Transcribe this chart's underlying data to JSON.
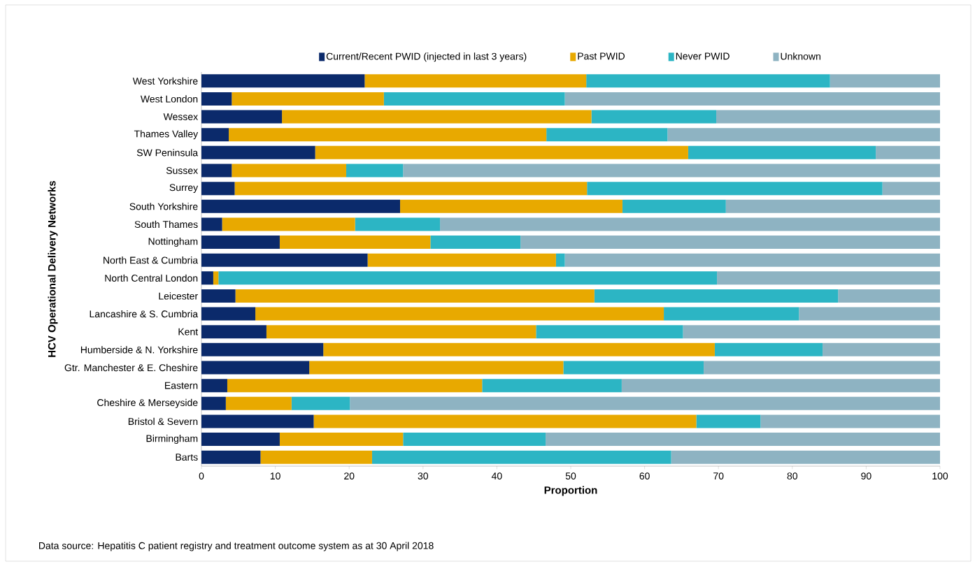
{
  "chart_data": {
    "type": "bar",
    "orientation": "horizontal",
    "stacked": true,
    "legend": "top",
    "grid": false,
    "xlabel": "Proportion",
    "ylabel": "HCV Operational Delivery Networks",
    "xlim": [
      0,
      100
    ],
    "xticks": [
      0,
      10,
      20,
      30,
      40,
      50,
      60,
      70,
      80,
      90,
      100
    ],
    "categories": [
      "West Yorkshire",
      "West London",
      "Wessex",
      "Thames Valley",
      "SW Peninsula",
      "Sussex",
      "Surrey",
      "South Yorkshire",
      "South Thames",
      "Nottingham",
      "North East & Cumbria",
      "North Central London",
      "Leicester",
      "Lancashire & S. Cumbria",
      "Kent",
      "Humberside & N. Yorkshire",
      "Gtr. Manchester & E. Cheshire",
      "Eastern",
      "Cheshire & Merseyside",
      "Bristol & Severn",
      "Birmingham",
      "Barts"
    ],
    "series": [
      {
        "name": "Current/Recent PWID (injected in last 3 years)",
        "color": "#0b2a6b",
        "values": [
          22.1,
          4.1,
          10.9,
          3.7,
          15.4,
          4.1,
          4.5,
          26.9,
          2.8,
          10.6,
          22.5,
          1.6,
          4.6,
          7.3,
          8.8,
          16.5,
          14.6,
          3.5,
          3.3,
          15.2,
          10.6,
          8.0
        ]
      },
      {
        "name": "Past PWID",
        "color": "#e8a900",
        "values": [
          30.0,
          20.6,
          41.9,
          43.0,
          50.5,
          15.5,
          47.7,
          30.1,
          18.0,
          20.4,
          25.5,
          0.7,
          48.6,
          55.3,
          36.5,
          53.0,
          34.4,
          34.5,
          8.9,
          51.8,
          16.7,
          15.1
        ]
      },
      {
        "name": "Never PWID",
        "color": "#2cb5c4",
        "values": [
          33.0,
          24.5,
          16.9,
          16.4,
          25.4,
          7.7,
          40.0,
          14.0,
          11.5,
          12.2,
          1.2,
          67.5,
          33.0,
          18.3,
          19.9,
          14.6,
          19.0,
          18.9,
          7.9,
          8.7,
          19.3,
          40.5
        ]
      },
      {
        "name": "Unknown",
        "color": "#8eb3c2",
        "values": [
          14.9,
          50.8,
          30.3,
          36.9,
          8.7,
          72.7,
          7.8,
          29.0,
          67.7,
          56.8,
          50.8,
          30.2,
          13.8,
          19.1,
          34.8,
          15.9,
          32.0,
          43.1,
          79.9,
          24.3,
          53.4,
          36.4
        ]
      }
    ],
    "annotations": [
      "Data source: Hepatitis C patient registry and treatment outcome system as at 30 April 2018"
    ]
  }
}
